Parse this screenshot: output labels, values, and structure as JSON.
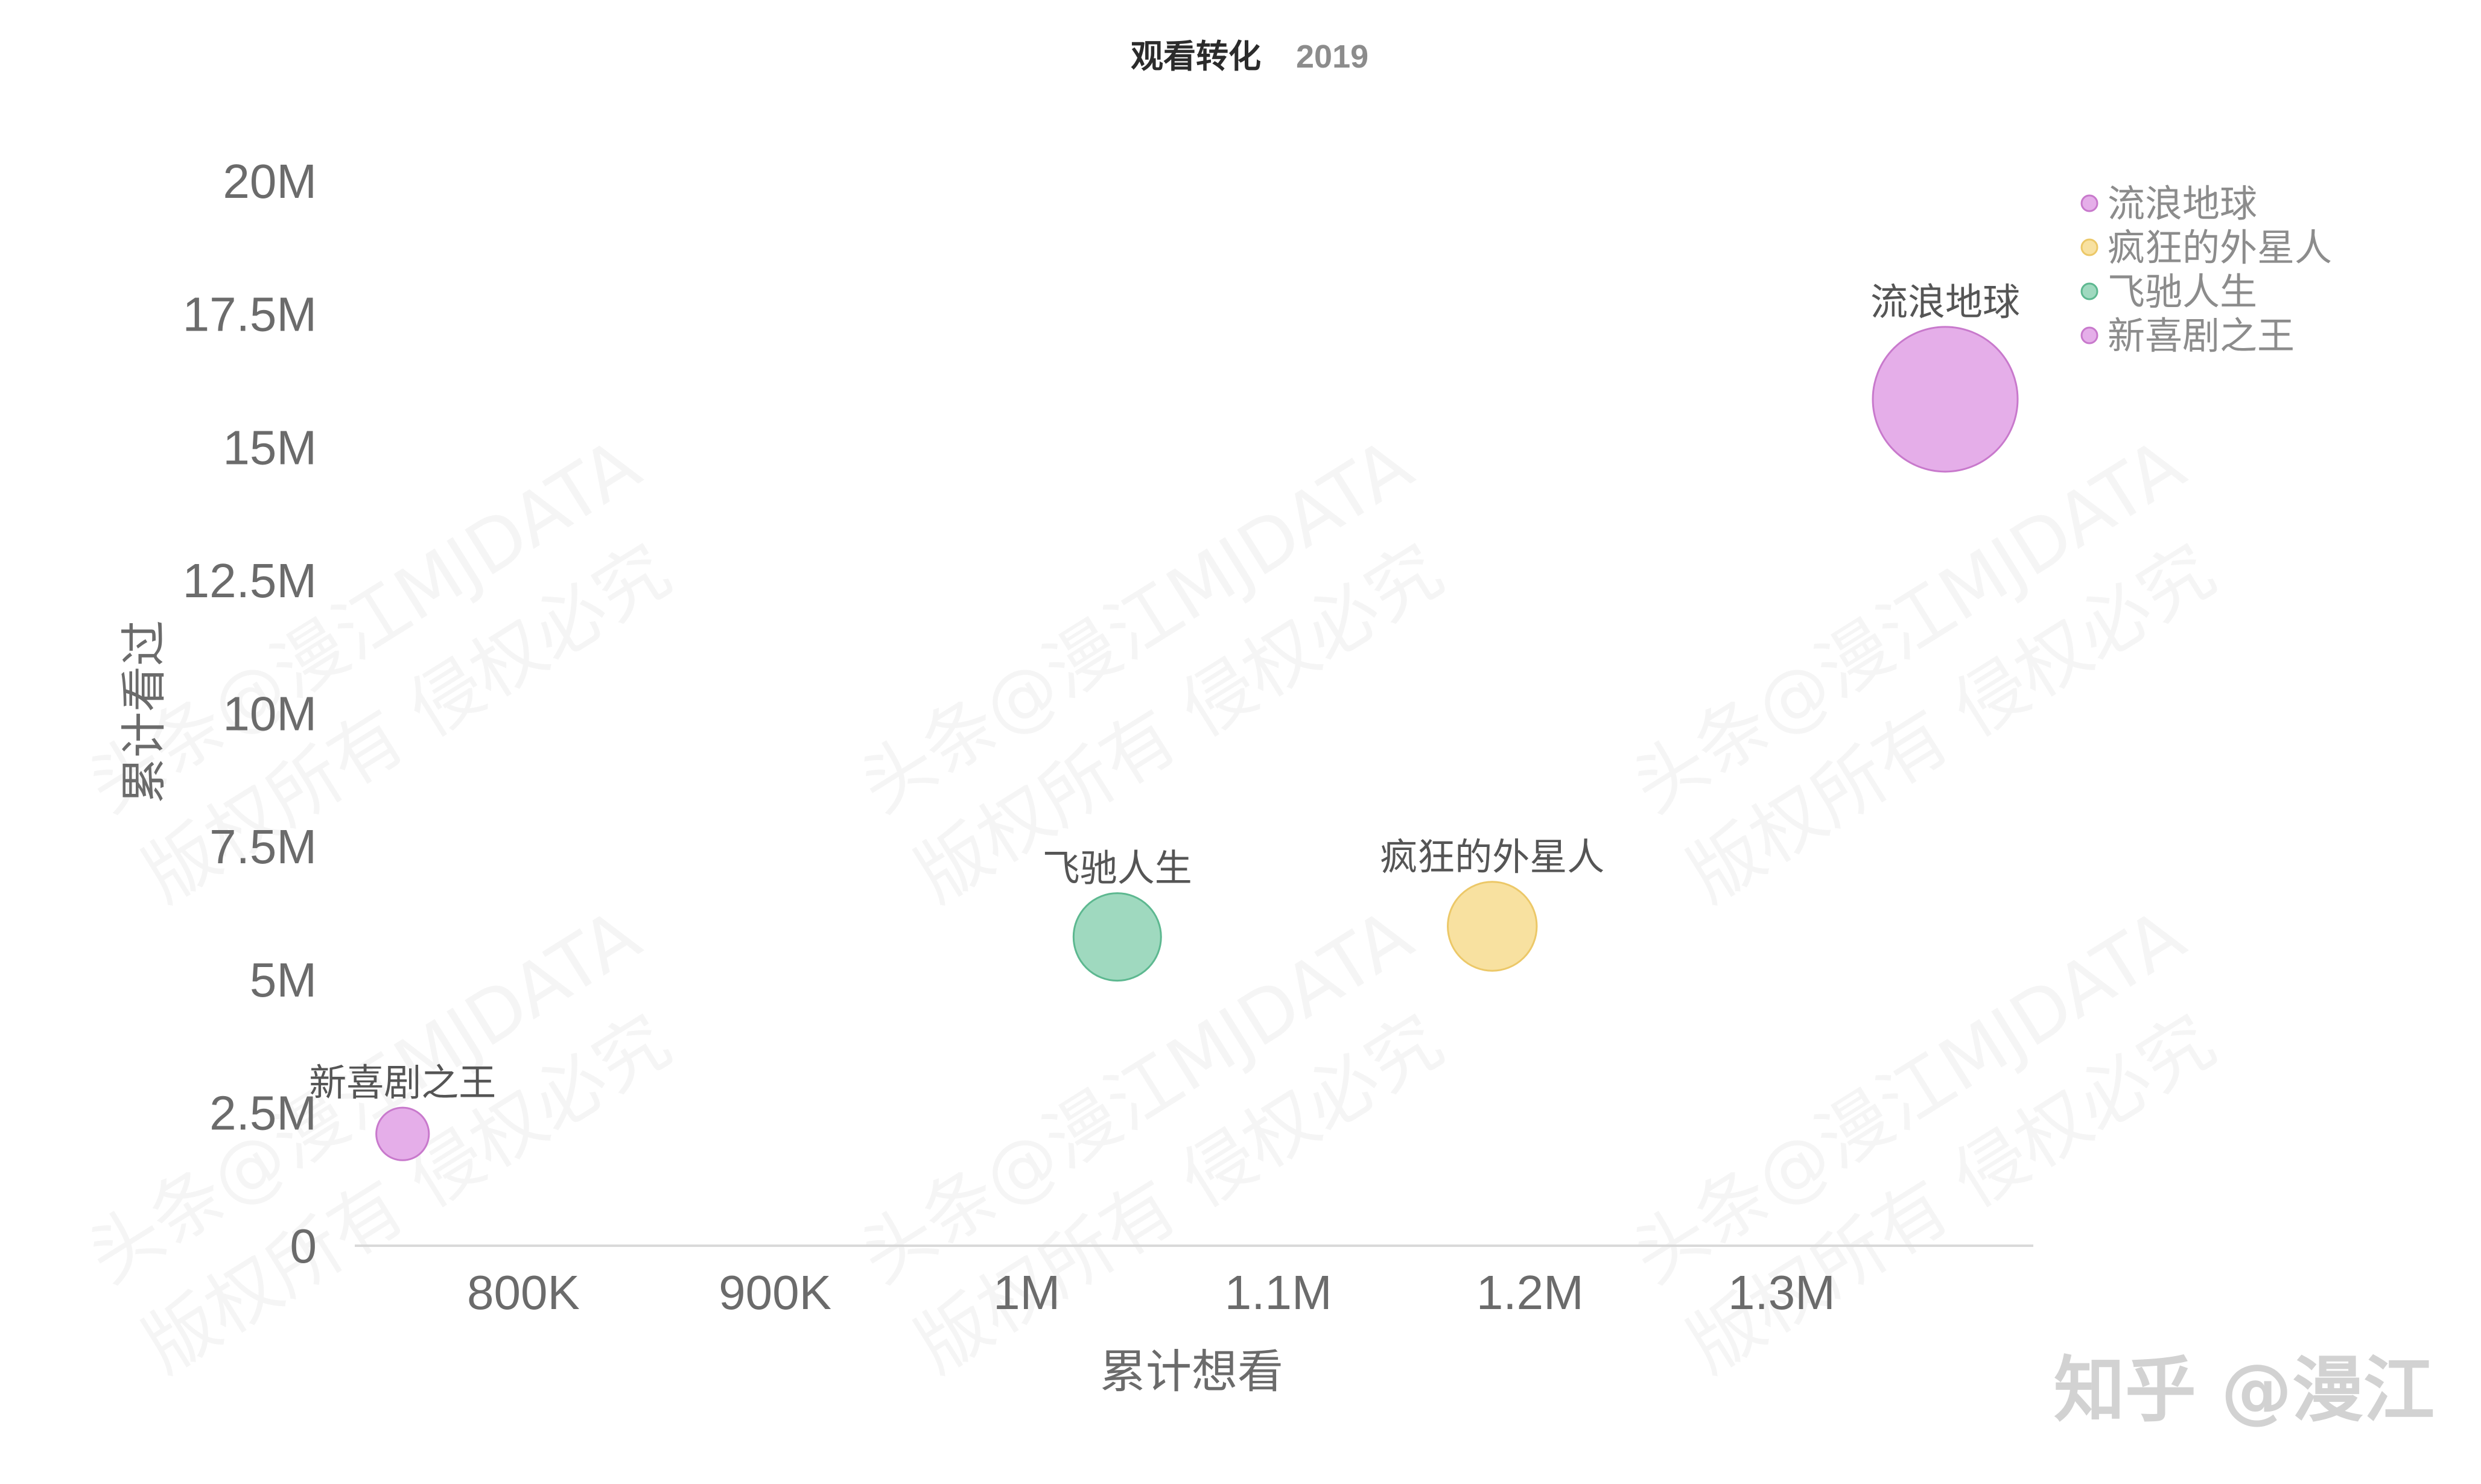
{
  "chart_data": {
    "type": "scatter",
    "title": "观看转化",
    "subtitle": "2019",
    "xlabel": "累计想看",
    "ylabel": "累计看过",
    "xlim": [
      733000,
      1400000
    ],
    "ylim": [
      0,
      20000000
    ],
    "x_ticks": [
      {
        "value": 800000,
        "label": "800K"
      },
      {
        "value": 900000,
        "label": "900K"
      },
      {
        "value": 1000000,
        "label": "1M"
      },
      {
        "value": 1100000,
        "label": "1.1M"
      },
      {
        "value": 1200000,
        "label": "1.2M"
      },
      {
        "value": 1300000,
        "label": "1.3M"
      }
    ],
    "y_ticks": [
      {
        "value": 0,
        "label": "0"
      },
      {
        "value": 2500000,
        "label": "2.5M"
      },
      {
        "value": 5000000,
        "label": "5M"
      },
      {
        "value": 7500000,
        "label": "7.5M"
      },
      {
        "value": 10000000,
        "label": "10M"
      },
      {
        "value": 12500000,
        "label": "12.5M"
      },
      {
        "value": 15000000,
        "label": "15M"
      },
      {
        "value": 17500000,
        "label": "17.5M"
      },
      {
        "value": 20000000,
        "label": "20M"
      }
    ],
    "grid": false,
    "legend_position": "top-right",
    "series": [
      {
        "name": "流浪地球",
        "x": 1365000,
        "y": 15900000,
        "size": 15900000,
        "color": "#e5aee9",
        "stroke": "#c879cc"
      },
      {
        "name": "疯狂的外星人",
        "x": 1185000,
        "y": 6000000,
        "size": 6000000,
        "color": "#f8e1a0",
        "stroke": "#ecc868"
      },
      {
        "name": "飞驰人生",
        "x": 1036000,
        "y": 5800000,
        "size": 5800000,
        "color": "#9fd9bf",
        "stroke": "#5db890"
      },
      {
        "name": "新喜剧之王",
        "x": 752000,
        "y": 2100000,
        "size": 2100000,
        "color": "#e5aee9",
        "stroke": "#c879cc"
      }
    ]
  },
  "watermark": {
    "lines": [
      "头条@漫江MJDATA",
      "版权所有 侵权必究"
    ],
    "logo": "知乎 @漫江"
  }
}
